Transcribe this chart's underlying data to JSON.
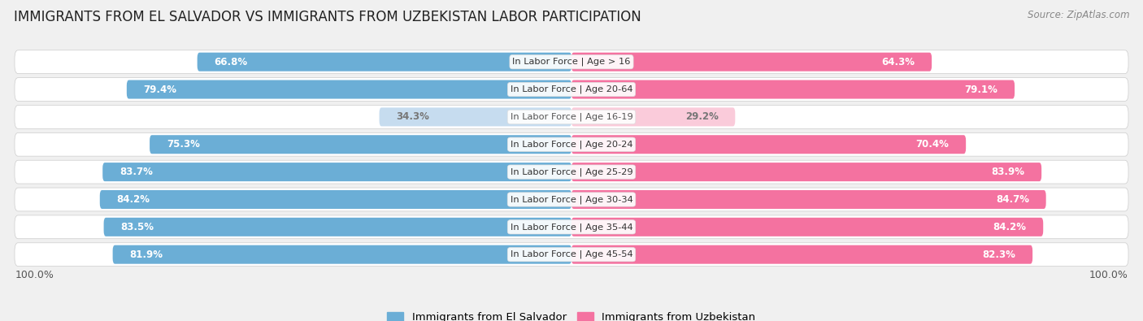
{
  "title": "IMMIGRANTS FROM EL SALVADOR VS IMMIGRANTS FROM UZBEKISTAN LABOR PARTICIPATION",
  "source": "Source: ZipAtlas.com",
  "categories": [
    "In Labor Force | Age > 16",
    "In Labor Force | Age 20-64",
    "In Labor Force | Age 16-19",
    "In Labor Force | Age 20-24",
    "In Labor Force | Age 25-29",
    "In Labor Force | Age 30-34",
    "In Labor Force | Age 35-44",
    "In Labor Force | Age 45-54"
  ],
  "el_salvador": [
    66.8,
    79.4,
    34.3,
    75.3,
    83.7,
    84.2,
    83.5,
    81.9
  ],
  "uzbekistan": [
    64.3,
    79.1,
    29.2,
    70.4,
    83.9,
    84.7,
    84.2,
    82.3
  ],
  "el_salvador_color": "#6BAED6",
  "uzbekistan_color": "#F472A0",
  "el_salvador_light_color": "#C6DCEF",
  "uzbekistan_light_color": "#FACBDA",
  "label_el_salvador": "Immigrants from El Salvador",
  "label_uzbekistan": "Immigrants from Uzbekistan",
  "bg_color": "#f0f0f0",
  "row_bg_color": "#e8e8e8",
  "center_label_bg": "#f8f8f8",
  "max_value": 100.0,
  "title_fontsize": 12,
  "label_fontsize": 8.2,
  "value_fontsize": 8.5,
  "tick_fontsize": 9,
  "bar_height": 0.7,
  "light_row_index": 2
}
